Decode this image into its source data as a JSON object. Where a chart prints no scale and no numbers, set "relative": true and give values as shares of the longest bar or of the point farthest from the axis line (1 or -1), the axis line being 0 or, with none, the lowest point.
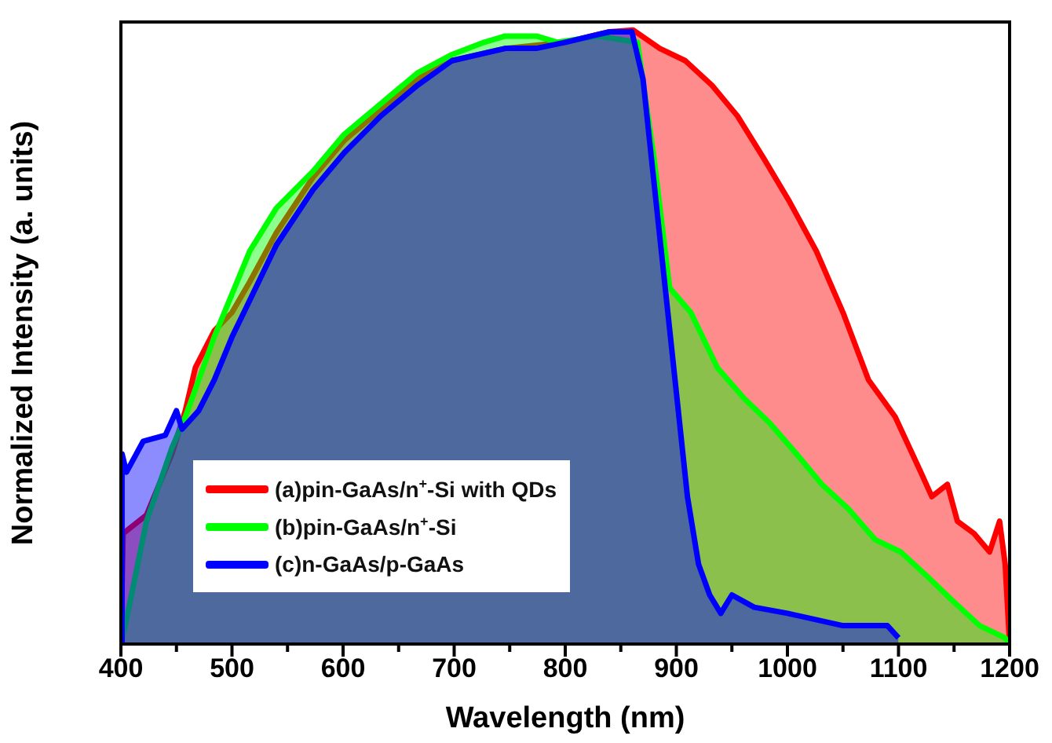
{
  "chart_data": {
    "type": "area",
    "xlabel": "Wavelength (nm)",
    "ylabel": "Normalized Intensity (a. units)",
    "relative": true,
    "xlim": [
      400,
      1200
    ],
    "xticks": [
      400,
      {
        "value": 450,
        "label": null
      },
      500,
      {
        "value": 550,
        "label": null
      },
      600,
      {
        "value": 650,
        "label": null
      },
      700,
      {
        "value": 750,
        "label": null
      },
      800,
      {
        "value": 850,
        "label": null
      },
      900,
      {
        "value": 950,
        "label": null
      },
      1000,
      {
        "value": 1050,
        "label": null
      },
      1100,
      {
        "value": 1150,
        "label": null
      },
      1200
    ],
    "legend": "bottom left",
    "grid": false,
    "line_style": "solid",
    "marker": "none",
    "series": [
      {
        "name": "(a)pin-GaAs/n$^{+}$-Si with QDs",
        "color": "#ff0000",
        "x": [
          400,
          402,
          423,
          446,
          458,
          467,
          484,
          500,
          516,
          540,
          573,
          601,
          634,
          667,
          698,
          746,
          800,
          840,
          861,
          885,
          908,
          932,
          955,
          979,
          1002,
          1026,
          1050,
          1073,
          1097,
          1120,
          1130,
          1144,
          1153,
          1168,
          1182,
          1191,
          1196,
          1200
        ],
        "values": [
          0,
          0.18,
          0.21,
          0.31,
          0.38,
          0.45,
          0.51,
          0.54,
          0.59,
          0.67,
          0.76,
          0.82,
          0.87,
          0.92,
          0.95,
          0.97,
          0.98,
          0.997,
          1,
          0.97,
          0.95,
          0.91,
          0.86,
          0.79,
          0.72,
          0.64,
          0.54,
          0.43,
          0.37,
          0.28,
          0.24,
          0.26,
          0.2,
          0.18,
          0.15,
          0.2,
          0.13,
          0
        ]
      },
      {
        "name": "(b)pin-GaAs/n$^{+}$-Si",
        "color": "#00ff00",
        "x": [
          400,
          405,
          423,
          446,
          458,
          484,
          500,
          516,
          540,
          573,
          601,
          634,
          667,
          698,
          727,
          746,
          774,
          793,
          830,
          865,
          880,
          894,
          913,
          937,
          961,
          984,
          1008,
          1031,
          1055,
          1079,
          1102,
          1126,
          1149,
          1173,
          1196,
          1200
        ],
        "values": [
          0,
          0.04,
          0.2,
          0.32,
          0.37,
          0.5,
          0.57,
          0.64,
          0.71,
          0.77,
          0.83,
          0.88,
          0.93,
          0.96,
          0.98,
          0.99,
          0.99,
          0.98,
          0.99,
          0.98,
          0.79,
          0.58,
          0.54,
          0.45,
          0.4,
          0.36,
          0.31,
          0.26,
          0.22,
          0.17,
          0.15,
          0.11,
          0.07,
          0.03,
          0.01,
          0
        ]
      },
      {
        "name": "(c)n-GaAs/p-GaAs",
        "color": "#0000ff",
        "x": [
          400,
          401,
          405,
          420,
          440,
          450,
          455,
          470,
          484,
          500,
          516,
          540,
          573,
          601,
          634,
          667,
          698,
          746,
          774,
          800,
          840,
          860,
          870,
          880,
          890,
          900,
          910,
          920,
          930,
          940,
          950,
          970,
          1000,
          1050,
          1090,
          1100
        ],
        "values": [
          0,
          0.31,
          0.28,
          0.33,
          0.34,
          0.38,
          0.35,
          0.38,
          0.43,
          0.5,
          0.56,
          0.65,
          0.74,
          0.8,
          0.86,
          0.91,
          0.95,
          0.97,
          0.97,
          0.98,
          0.997,
          0.997,
          0.92,
          0.75,
          0.58,
          0.41,
          0.24,
          0.13,
          0.08,
          0.05,
          0.08,
          0.06,
          0.05,
          0.03,
          0.03,
          0.01
        ]
      }
    ]
  }
}
